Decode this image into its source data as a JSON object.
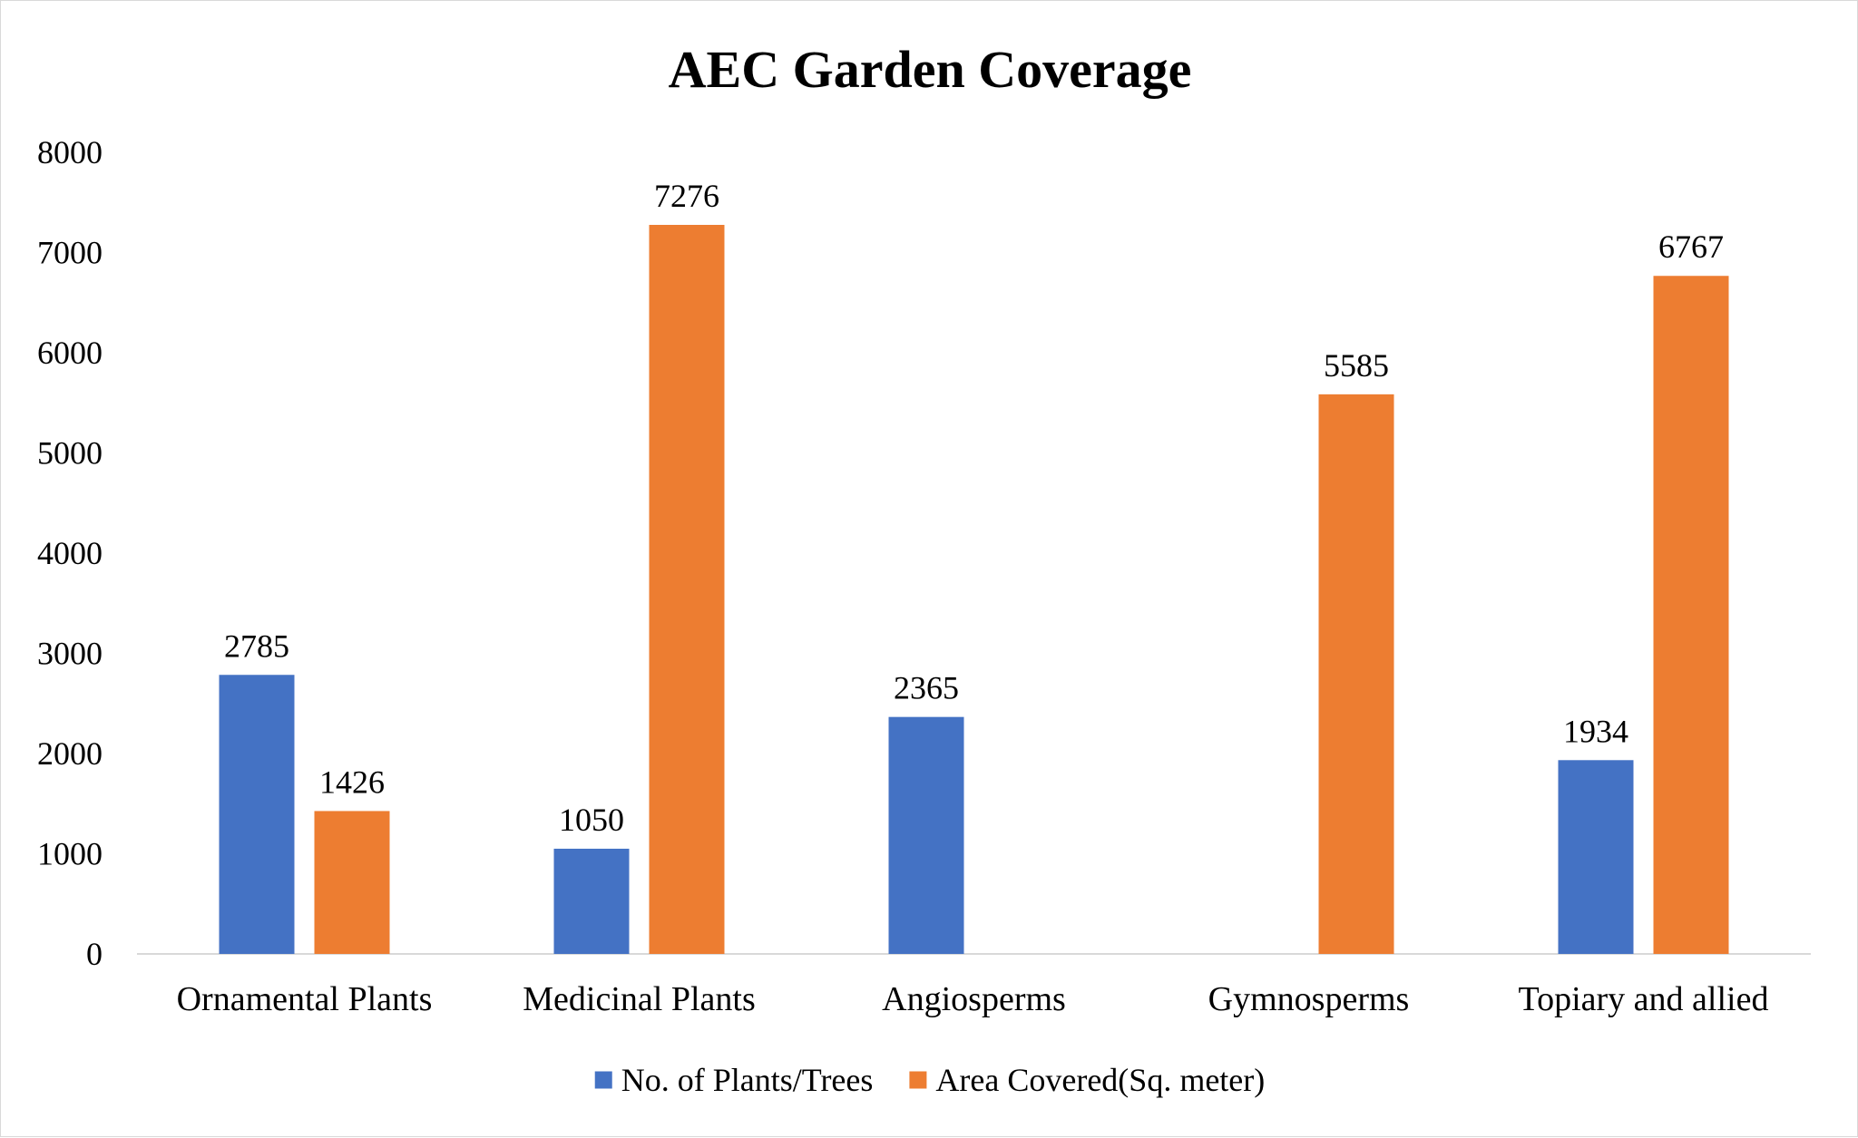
{
  "chart_data": {
    "type": "bar",
    "title": "AEC Garden Coverage",
    "categories": [
      "Ornamental Plants",
      "Medicinal Plants",
      "Angiosperms",
      "Gymnosperms",
      "Topiary and allied"
    ],
    "series": [
      {
        "name": "No. of Plants/Trees",
        "color": "#4472C4",
        "values": [
          2785,
          1050,
          2365,
          null,
          1934
        ]
      },
      {
        "name": "Area Covered(Sq. meter)",
        "color": "#ED7D31",
        "values": [
          1426,
          7276,
          null,
          5585,
          6767
        ]
      }
    ],
    "ylim": [
      0,
      8000
    ],
    "yticks": [
      0,
      1000,
      2000,
      3000,
      4000,
      5000,
      6000,
      7000,
      8000
    ],
    "xlabel": "",
    "ylabel": "",
    "grid": false,
    "legend": "bottom"
  }
}
